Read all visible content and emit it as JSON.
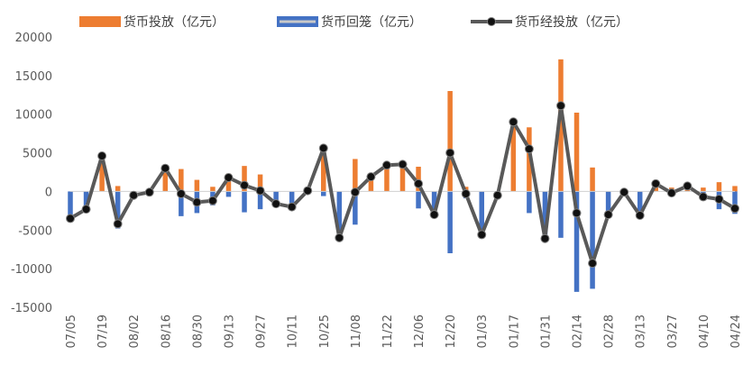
{
  "chart_data": {
    "type": "bar+line",
    "legend": [
      {
        "label": "货币投放（亿元）",
        "color": "#ED7D31",
        "kind": "bar"
      },
      {
        "label": "货币回笼（亿元）",
        "color": "#4472C4",
        "kind": "bar"
      },
      {
        "label": "货币经投放（亿元）",
        "color": "#595959",
        "kind": "line"
      }
    ],
    "y_ticks": [
      "20000",
      "15000",
      "10000",
      "5000",
      "0",
      "-5000",
      "-10000",
      "-15000"
    ],
    "ylim": [
      -15000,
      20000
    ],
    "y_tick_values": [
      20000,
      15000,
      10000,
      5000,
      0,
      -5000,
      -10000,
      -15000
    ],
    "x_tick_labels": [
      {
        "index": 0,
        "label": "07/05"
      },
      {
        "index": 2,
        "label": "07/19"
      },
      {
        "index": 4,
        "label": "08/02"
      },
      {
        "index": 6,
        "label": "08/16"
      },
      {
        "index": 8,
        "label": "08/30"
      },
      {
        "index": 10,
        "label": "09/13"
      },
      {
        "index": 12,
        "label": "09/27"
      },
      {
        "index": 14,
        "label": "10/11"
      },
      {
        "index": 16,
        "label": "10/25"
      },
      {
        "index": 18,
        "label": "11/08"
      },
      {
        "index": 20,
        "label": "11/22"
      },
      {
        "index": 22,
        "label": "12/06"
      },
      {
        "index": 24,
        "label": "12/20"
      },
      {
        "index": 26,
        "label": "01/03"
      },
      {
        "index": 28,
        "label": "01/17"
      },
      {
        "index": 30,
        "label": "01/31"
      },
      {
        "index": 32,
        "label": "02/14"
      },
      {
        "index": 34,
        "label": "02/28"
      },
      {
        "index": 36,
        "label": "03/13"
      },
      {
        "index": 38,
        "label": "03/27"
      },
      {
        "index": 40,
        "label": "04/10"
      },
      {
        "index": 42,
        "label": "04/24"
      }
    ],
    "series": [
      {
        "name": "货币投放（亿元）",
        "values": [
          0,
          0,
          4500,
          700,
          0,
          0,
          3000,
          2900,
          1500,
          600,
          2300,
          3300,
          2200,
          0,
          0,
          0,
          5600,
          0,
          4200,
          2000,
          3300,
          3600,
          3200,
          0,
          13000,
          600,
          0,
          0,
          9000,
          8300,
          0,
          17100,
          10200,
          3100,
          0,
          0,
          0,
          1000,
          500,
          800,
          500,
          1200,
          700
        ]
      },
      {
        "name": "货币回笼（亿元）",
        "values": [
          -3500,
          -2300,
          0,
          -4800,
          -600,
          0,
          0,
          -3200,
          -2800,
          -1800,
          -700,
          -2700,
          -2300,
          -1500,
          -2000,
          0,
          -600,
          -6000,
          -4300,
          0,
          0,
          0,
          -2200,
          -3000,
          -8000,
          -900,
          -5600,
          -500,
          0,
          -2800,
          -6100,
          -6000,
          -13000,
          -12600,
          -3000,
          0,
          -3000,
          0,
          0,
          0,
          -700,
          -2300,
          -2900
        ]
      },
      {
        "name": "货币经投放（亿元）",
        "values": [
          -3500,
          -2300,
          4600,
          -4200,
          -500,
          -100,
          3000,
          -300,
          -1400,
          -1200,
          1800,
          800,
          100,
          -1600,
          -2000,
          100,
          5600,
          -6000,
          -100,
          1900,
          3400,
          3500,
          1000,
          -3000,
          5000,
          -300,
          -5600,
          -500,
          9000,
          5500,
          -6100,
          11100,
          -2800,
          -9300,
          -3000,
          -100,
          -3100,
          1000,
          -200,
          700,
          -700,
          -1000,
          -2200
        ]
      }
    ]
  }
}
